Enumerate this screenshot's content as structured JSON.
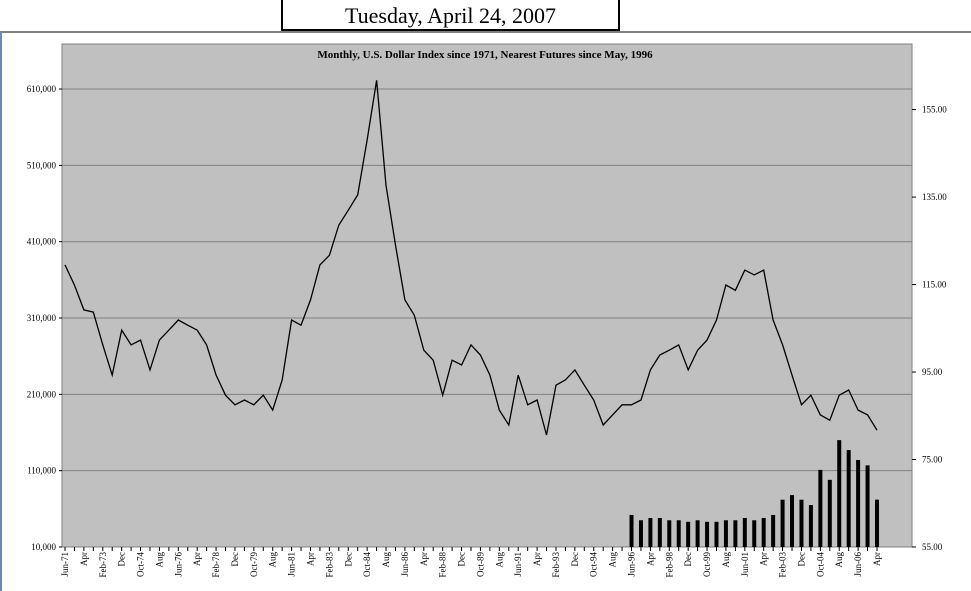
{
  "page_title": "Tuesday, April 24, 2007",
  "chart_data": {
    "type": "line",
    "title": "Monthly, U.S. Dollar Index since 1971, Nearest Futures since May, 1996",
    "categories": [
      "Jun-71",
      null,
      "Apr",
      null,
      "Feb-73",
      null,
      "Dec",
      null,
      "Oct-74",
      null,
      "Aug",
      null,
      "Jun-76",
      null,
      "Apr",
      null,
      "Feb-78",
      null,
      "Dec",
      null,
      "Oct-79",
      null,
      "Aug",
      null,
      "Jun-81",
      null,
      "Apr",
      null,
      "Feb-83",
      null,
      "Dec",
      null,
      "Oct-84",
      null,
      "Aug",
      null,
      "Jun-86",
      null,
      "Apr",
      null,
      "Feb-88",
      null,
      "Dec",
      null,
      "Oct-89",
      null,
      "Aug",
      null,
      "Jun-91",
      null,
      "Apr",
      null,
      "Feb-93",
      null,
      "Dec",
      null,
      "Oct-94",
      null,
      "Aug",
      null,
      "Jun-96",
      null,
      "Apr",
      null,
      "Feb-98",
      null,
      "Dec",
      null,
      "Oct-99",
      null,
      "Aug",
      null,
      "Jun-01",
      null,
      "Apr",
      null,
      "Feb-03",
      null,
      "Dec",
      null,
      "Oct-04",
      null,
      "Aug",
      null,
      "Jun-06",
      null,
      "Apr"
    ],
    "series": [
      {
        "type": "line",
        "axis": "y2",
        "color": "#000000",
        "values": [
          119.5,
          114.9,
          109.2,
          108.7,
          101.2,
          94.3,
          104.6,
          101.2,
          102.3,
          95.5,
          102.3,
          104.6,
          106.9,
          105.7,
          104.6,
          101.2,
          94.3,
          89.7,
          87.5,
          88.6,
          87.5,
          89.7,
          86.3,
          93.2,
          106.9,
          105.7,
          111.5,
          119.5,
          121.7,
          128.6,
          132.0,
          135.5,
          148.0,
          161.7,
          137.7,
          124.0,
          111.5,
          108.0,
          100.0,
          97.7,
          89.7,
          97.7,
          96.6,
          101.2,
          98.9,
          94.3,
          86.3,
          82.9,
          94.3,
          87.5,
          88.6,
          80.6,
          92.0,
          93.2,
          95.5,
          92.0,
          88.6,
          82.9,
          85.2,
          87.5,
          87.5,
          88.6,
          95.5,
          98.9,
          100.0,
          101.2,
          95.5,
          100.0,
          102.3,
          106.9,
          114.9,
          113.7,
          118.3,
          117.2,
          118.3,
          106.9,
          101.2,
          94.3,
          87.5,
          89.7,
          85.2,
          84.0,
          89.7,
          90.9,
          86.3,
          85.2,
          81.7
        ]
      },
      {
        "type": "bar",
        "axis": "y",
        "color": "#000000",
        "values": [
          null,
          null,
          null,
          null,
          null,
          null,
          null,
          null,
          null,
          null,
          null,
          null,
          null,
          null,
          null,
          null,
          null,
          null,
          null,
          null,
          null,
          null,
          null,
          null,
          null,
          null,
          null,
          null,
          null,
          null,
          null,
          null,
          null,
          null,
          null,
          null,
          null,
          null,
          null,
          null,
          null,
          null,
          null,
          null,
          null,
          null,
          null,
          null,
          null,
          null,
          null,
          null,
          null,
          null,
          null,
          null,
          null,
          null,
          null,
          null,
          52000,
          45000,
          48000,
          48000,
          45000,
          45000,
          43000,
          45000,
          43000,
          43000,
          45000,
          45000,
          48000,
          45000,
          48000,
          52000,
          72000,
          78000,
          72000,
          65000,
          111000,
          98000,
          150000,
          137000,
          124000,
          117000,
          72000
        ]
      }
    ],
    "ylim": [
      10000,
      669000
    ],
    "yticks": [
      {
        "value": 10000,
        "label": "10,000"
      },
      {
        "value": 110000,
        "label": "110,000"
      },
      {
        "value": 210000,
        "label": "210,000"
      },
      {
        "value": 310000,
        "label": "310,000"
      },
      {
        "value": 410000,
        "label": "410,000"
      },
      {
        "value": 510000,
        "label": "510,000"
      },
      {
        "value": 610000,
        "label": "610,000"
      }
    ],
    "y2lim": [
      55,
      170
    ],
    "y2ticks": [
      {
        "value": 55,
        "label": "55.00"
      },
      {
        "value": 75,
        "label": "75.00"
      },
      {
        "value": 95,
        "label": "95.00"
      },
      {
        "value": 115,
        "label": "115.00"
      },
      {
        "value": 135,
        "label": "135.00"
      },
      {
        "value": 155,
        "label": "155.00"
      }
    ],
    "grid": true,
    "plot_color": "#c0c0c0"
  }
}
